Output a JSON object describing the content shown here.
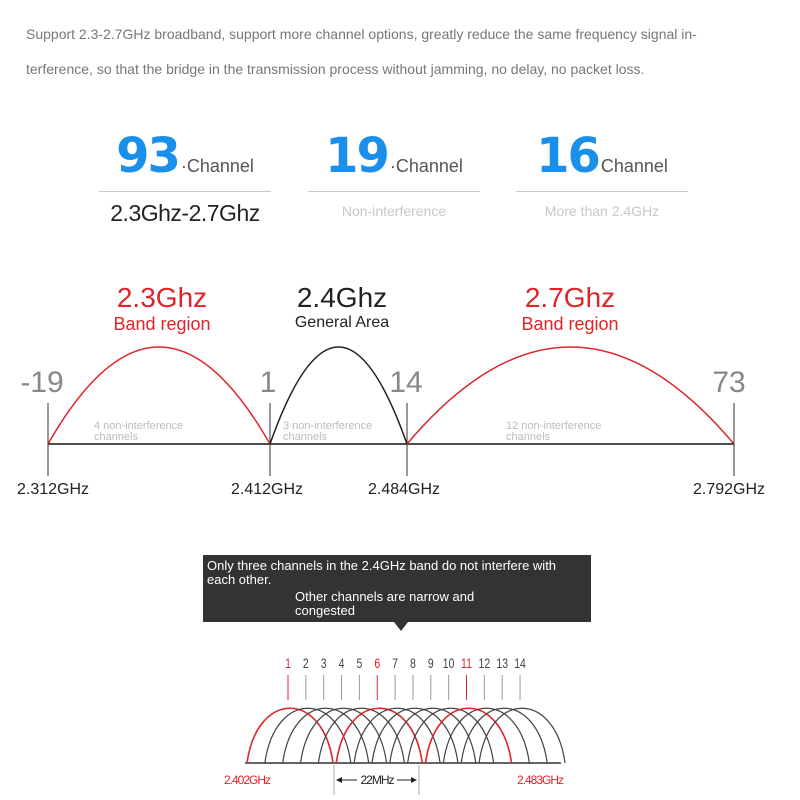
{
  "intro": {
    "line1": "Support 2.3-2.7GHz broadband, support more channel options, greatly reduce the same frequency signal in-",
    "line2": "terference, so that the bridge in the transmission process without jamming, no delay, no packet loss."
  },
  "stats": [
    {
      "number": "93",
      "unit": "·Channel",
      "subtitle": "2.3Ghz-2.7Ghz"
    },
    {
      "number": "19",
      "unit": "·Channel",
      "subtitle": "Non-interference"
    },
    {
      "number": "16",
      "unit": "Channel",
      "subtitle": "More than 2.4GHz"
    }
  ],
  "bands": [
    {
      "title": "2.3Ghz",
      "label": "Band region",
      "color": "#e0242a"
    },
    {
      "title": "2.4Ghz",
      "label": "General Area",
      "color": "#222222"
    },
    {
      "title": "2.7Ghz",
      "label": "Band region",
      "color": "#e0242a"
    }
  ],
  "channel_markers": [
    "-19",
    "1",
    "14",
    "73"
  ],
  "frequency_markers": [
    "2.312GHz",
    "2.412GHz",
    "2.484GHz",
    "2.792GHz"
  ],
  "region_notes": [
    {
      "line1": "4 non-interference",
      "line2": "channels"
    },
    {
      "line1": "3 non-interference",
      "line2": "channels"
    },
    {
      "line1": "12 non-interference",
      "line2": "channels"
    }
  ],
  "tooltip": {
    "line1": "Only three channels in the 2.4GHz band do not interfere with each other.",
    "line2": "Other channels are narrow and congested"
  },
  "wifi_channels": {
    "numbers": [
      "1",
      "2",
      "3",
      "4",
      "5",
      "6",
      "7",
      "8",
      "9",
      "10",
      "11",
      "12",
      "13",
      "14"
    ],
    "non_overlapping": [
      "1",
      "6",
      "11"
    ],
    "start_label": "2.402GHz",
    "end_label": "2.483GHz",
    "width_label": "22MHz",
    "highlight_color": "#e0242a",
    "normal_color": "#444444"
  }
}
